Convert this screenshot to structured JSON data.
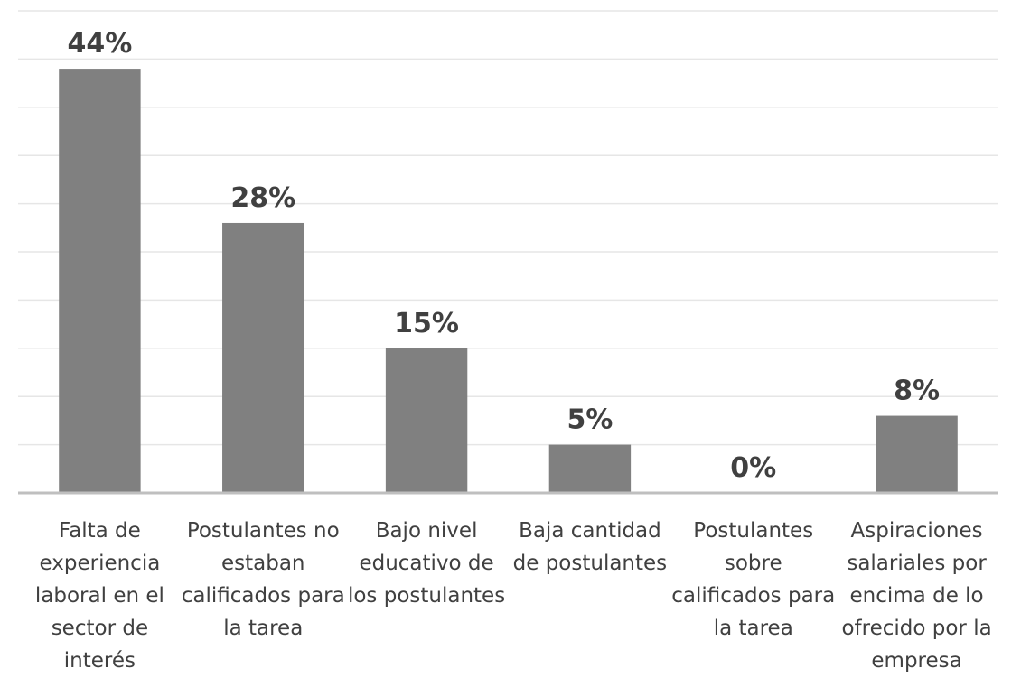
{
  "chart_data": {
    "type": "bar",
    "categories": [
      "Falta de experiencia laboral en el sector de interés",
      "Postulantes no estaban calificados para la tarea",
      "Bajo nivel educativo de los postulantes",
      "Baja cantidad de postulantes",
      "Postulantes sobre calificados para la tarea",
      "Aspiraciones salariales por encima de lo ofrecido por la empresa"
    ],
    "values": [
      44,
      28,
      15,
      5,
      0,
      8
    ],
    "value_labels": [
      "44%",
      "28%",
      "15%",
      "5%",
      "0%",
      "8%"
    ],
    "color": "#808080",
    "ylim": [
      0,
      50
    ],
    "yticks": [
      0,
      5,
      10,
      15,
      20,
      25,
      30,
      35,
      40,
      45,
      50
    ],
    "grid": true
  }
}
